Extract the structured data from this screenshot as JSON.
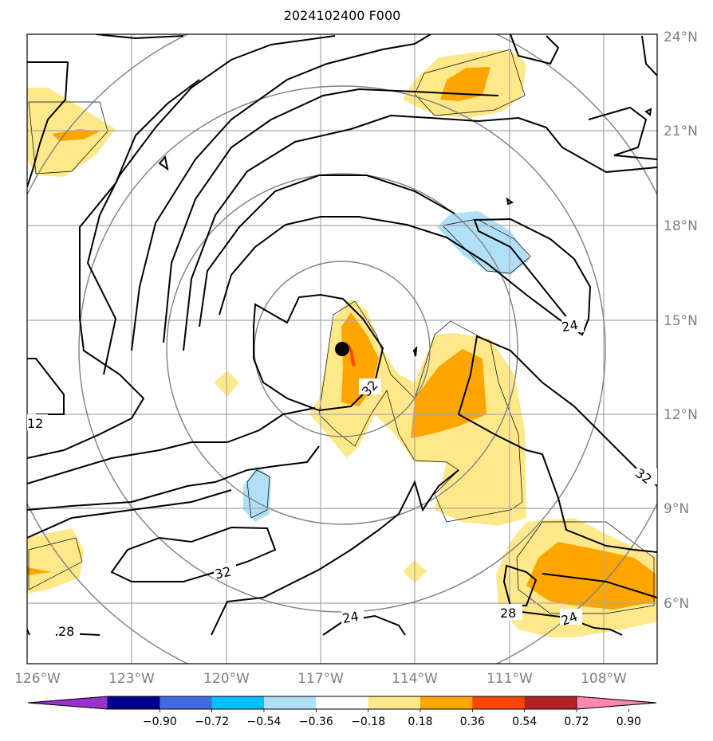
{
  "title": "2024102400 F000",
  "map": {
    "lat_labels": [
      "24°N",
      "21°N",
      "18°N",
      "15°N",
      "12°N",
      "9°N",
      "6°N"
    ],
    "lon_labels": [
      "126°W",
      "123°W",
      "120°W",
      "117°W",
      "114°W",
      "111°W",
      "108°W"
    ],
    "contour_labels": [
      "24",
      "32",
      "12",
      "32",
      "32",
      "28",
      "24",
      "28",
      "24"
    ],
    "storm_center": {
      "lat": 14.1,
      "lon": -116.6
    }
  },
  "colorbar": {
    "ticks": [
      "−0.90",
      "−0.72",
      "−0.54",
      "−0.36",
      "−0.18",
      "0.18",
      "0.36",
      "0.54",
      "0.72",
      "0.90"
    ],
    "colors": [
      "#9932cc",
      "#00008b",
      "#4169e1",
      "#00bfff",
      "#b0e0f8",
      "#ffffff",
      "#ffe88a",
      "#ffa500",
      "#ff4500",
      "#b22222",
      "#ff88aa"
    ]
  }
}
